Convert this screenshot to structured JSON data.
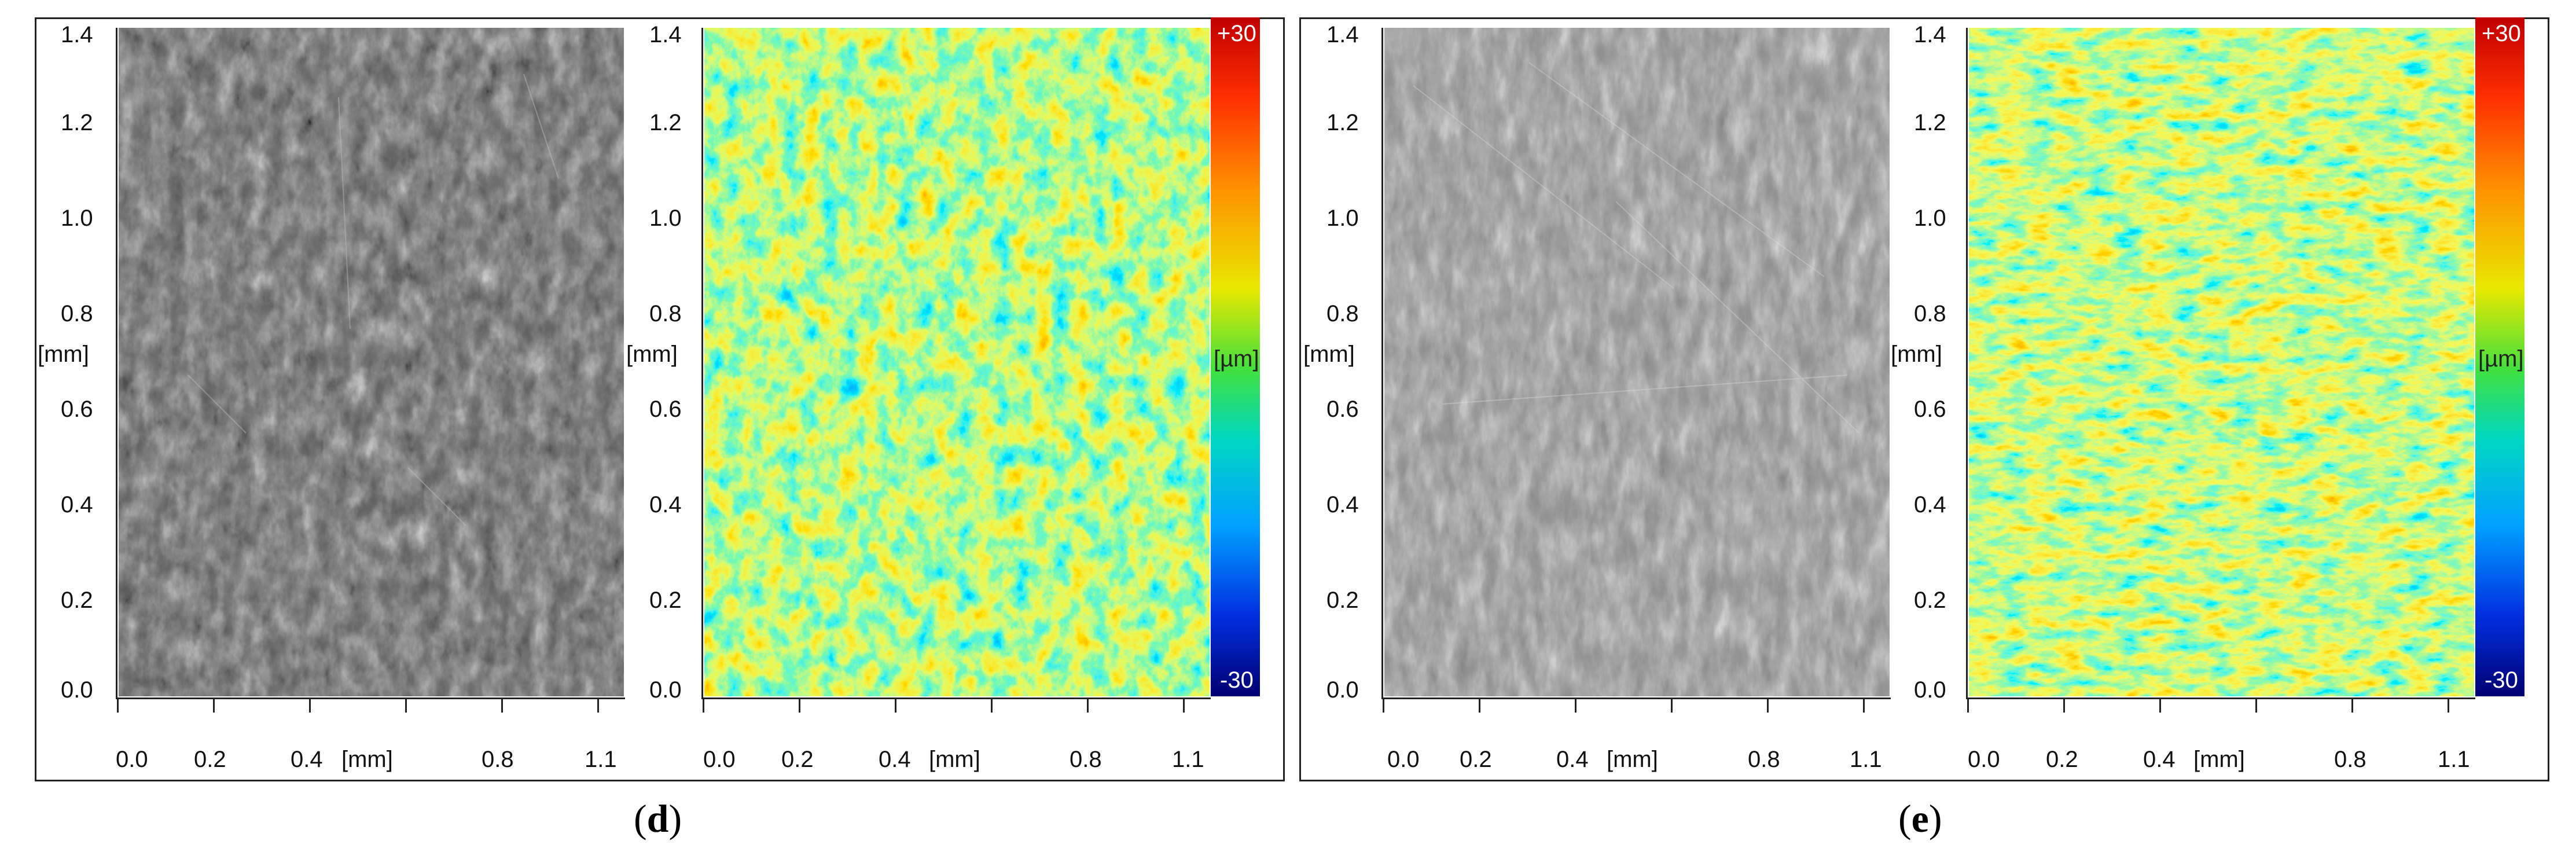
{
  "panels": [
    {
      "label": "d",
      "y_ticks": [
        "1.4",
        "1.2",
        "1.0",
        "0.8",
        "0.6",
        "0.4",
        "0.2",
        "0.0"
      ],
      "x_ticks": [
        "0.0",
        "0.2",
        "0.4",
        "0.8",
        "1.1"
      ],
      "axis_unit": "[mm]",
      "colorbar": {
        "max": "+30",
        "min": "-30",
        "unit": "[µm]"
      }
    },
    {
      "label": "e",
      "y_ticks": [
        "1.4",
        "1.2",
        "1.0",
        "0.8",
        "0.6",
        "0.4",
        "0.2",
        "0.0"
      ],
      "x_ticks": [
        "0.0",
        "0.2",
        "0.4",
        "0.8",
        "1.1"
      ],
      "axis_unit": "[mm]",
      "colorbar": {
        "max": "+30",
        "min": "-30",
        "unit": "[µm]"
      }
    }
  ],
  "colors": {
    "colorbar_top": "#cc0000",
    "colorbar_mid": "#44dd44",
    "colorbar_bottom": "#000088",
    "frame": "#222222"
  },
  "icons": [
    "grayscale-micrograph",
    "height-colormap"
  ]
}
